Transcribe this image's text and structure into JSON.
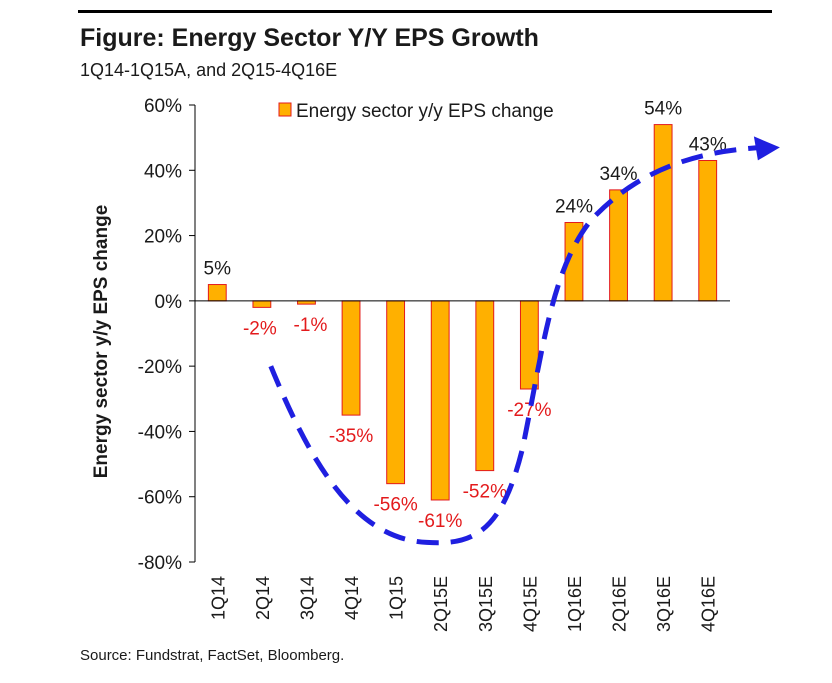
{
  "header": {
    "title": "Figure: Energy Sector Y/Y EPS Growth",
    "subtitle": "1Q14-1Q15A, and 2Q15-4Q16E"
  },
  "footer": {
    "source": "Source: Fundstrat, FactSet, Bloomberg."
  },
  "colors": {
    "bar_fill": "#FFB000",
    "bar_stroke": "#E31A1C",
    "negative_label": "#E31A1C",
    "positive_label": "#1a1a1a",
    "trend_arrow": "#1F1FE0"
  },
  "chart_data": {
    "type": "bar",
    "title": "Figure: Energy Sector Y/Y EPS Growth",
    "subtitle": "1Q14-1Q15A, and 2Q15-4Q16E",
    "ylabel": "Energy sector y/y EPS change",
    "xlabel": "",
    "categories": [
      "1Q14",
      "2Q14",
      "3Q14",
      "4Q14",
      "1Q15",
      "2Q15E",
      "3Q15E",
      "4Q15E",
      "1Q16E",
      "2Q16E",
      "3Q16E",
      "4Q16E"
    ],
    "series": [
      {
        "name": "Energy sector y/y EPS change",
        "values": [
          5,
          -2,
          -1,
          -35,
          -56,
          -61,
          -52,
          -27,
          24,
          34,
          54,
          43
        ]
      }
    ],
    "data_labels": [
      "5%",
      "-2%",
      "-1%",
      "-35%",
      "-56%",
      "-61%",
      "-52%",
      "-27%",
      "24%",
      "34%",
      "54%",
      "43%"
    ],
    "ylim": [
      -80,
      60
    ],
    "yticks": [
      -80,
      -60,
      -40,
      -20,
      0,
      20,
      40,
      60
    ],
    "ytick_labels": [
      "-80%",
      "-60%",
      "-40%",
      "-20%",
      "0%",
      "20%",
      "40%",
      "60%"
    ],
    "grid": false,
    "legend": {
      "position": "top-center",
      "entries": [
        "Energy sector y/y EPS change"
      ]
    },
    "annotations": [
      {
        "type": "dashed-arrow",
        "shape": "trend curve dipping below zero and rising",
        "color": "#1F1FE0"
      }
    ]
  }
}
